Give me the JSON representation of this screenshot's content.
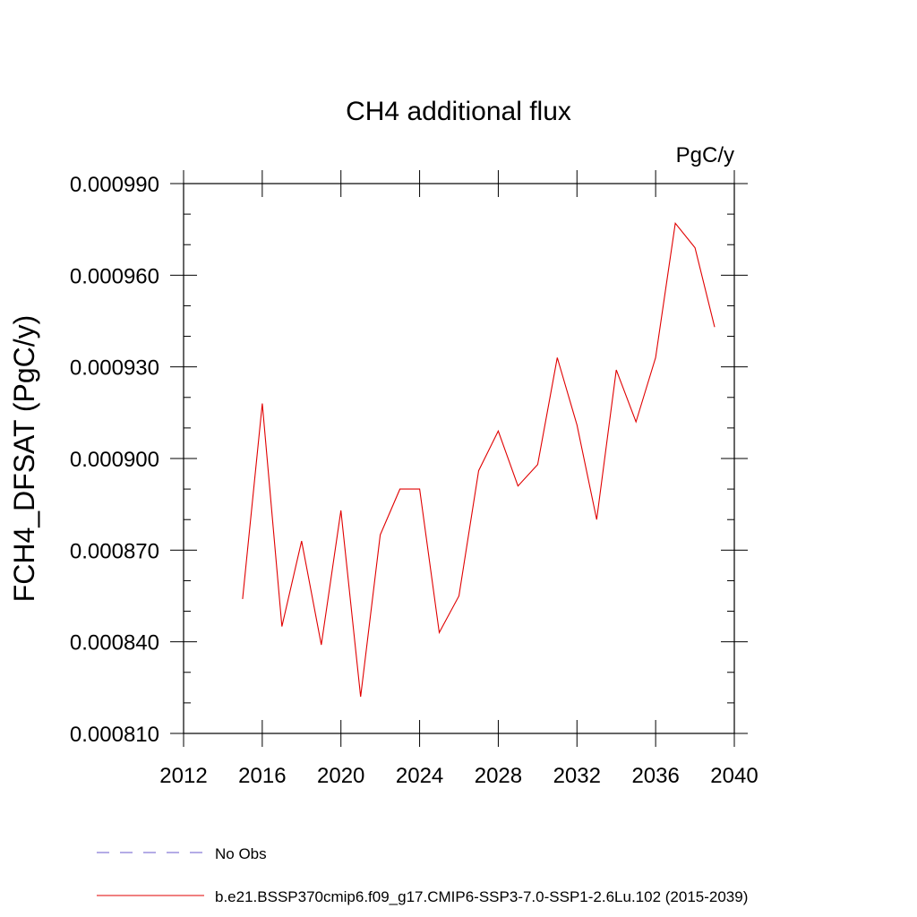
{
  "chart_data": {
    "type": "line",
    "title": "CH4 additional flux",
    "units_label": "PgC/y",
    "ylabel": "FCH4_DFSAT  (PgC/y)",
    "xlabel": "",
    "xlim": [
      2012,
      2040
    ],
    "ylim": [
      0.00081,
      0.00099
    ],
    "x_ticks": [
      2012,
      2016,
      2020,
      2024,
      2028,
      2032,
      2036,
      2040
    ],
    "x_tick_labels": [
      "2012",
      "2016",
      "2020",
      "2024",
      "2028",
      "2032",
      "2036",
      "2040"
    ],
    "y_ticks": [
      0.00081,
      0.00084,
      0.00087,
      0.0009,
      0.00093,
      0.00096,
      0.00099
    ],
    "y_tick_labels": [
      "0.000810",
      "0.000840",
      "0.000870",
      "0.000900",
      "0.000930",
      "0.000960",
      "0.000990"
    ],
    "grid": false,
    "legend_position": "bottom",
    "series": [
      {
        "name": "b.e21.BSSP370cmip6.f09_g17.CMIP6-SSP3-7.0-SSP1-2.6Lu.102 (2015-2039)",
        "color": "#e00000",
        "style": "solid",
        "x": [
          2015,
          2016,
          2017,
          2018,
          2019,
          2020,
          2021,
          2022,
          2023,
          2024,
          2025,
          2026,
          2027,
          2028,
          2029,
          2030,
          2031,
          2032,
          2033,
          2034,
          2035,
          2036,
          2037,
          2038,
          2039
        ],
        "values": [
          0.000854,
          0.000918,
          0.000845,
          0.000873,
          0.000839,
          0.000883,
          0.000822,
          0.000875,
          0.00089,
          0.00089,
          0.000843,
          0.000855,
          0.000896,
          0.000909,
          0.000891,
          0.000898,
          0.000933,
          0.000911,
          0.00088,
          0.000929,
          0.000912,
          0.000933,
          0.000977,
          0.000969,
          0.000943
        ]
      }
    ],
    "legend_entries": [
      {
        "name": "No Obs",
        "color": "#6a5acd",
        "style": "dashed"
      },
      {
        "name": "b.e21.BSSP370cmip6.f09_g17.CMIP6-SSP3-7.0-SSP1-2.6Lu.102 (2015-2039)",
        "color": "#e00000",
        "style": "solid"
      }
    ]
  }
}
